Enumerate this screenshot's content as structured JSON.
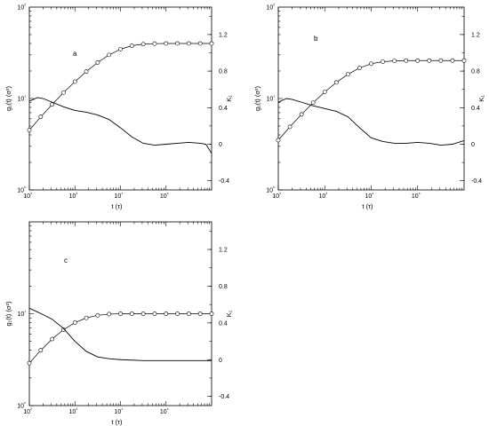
{
  "chart_data": [
    {
      "type": "line",
      "panel_label": "a",
      "xlabel": "t (τ)",
      "ylabel_left": "g₁(t) (σ²)",
      "ylabel_right": "K₁",
      "x_scale": "log",
      "y_left_scale": "log",
      "xlim": [
        100,
        1000000
      ],
      "y_left_lim": [
        1,
        100
      ],
      "y_right_lim": [
        -0.5,
        1.5
      ],
      "x_ticks": [
        "10²",
        "10³",
        "10⁴",
        "10⁵"
      ],
      "y_left_ticks": [
        "10⁰",
        "10¹",
        "10²"
      ],
      "y_right_ticks": [
        "-0.4",
        "0",
        "0.4",
        "0.8",
        "1.2"
      ],
      "series": [
        {
          "style": "circles_with_line",
          "x": [
            100,
            178,
            316,
            562,
            1000,
            1778,
            3162,
            5623,
            10000,
            17783,
            31623,
            56234,
            100000,
            177828,
            316228,
            562341,
            1000000
          ],
          "y": [
            4.5,
            6.3,
            8.6,
            11.6,
            15.3,
            19.7,
            24.8,
            30.0,
            34.6,
            37.8,
            39.3,
            39.8,
            40.0,
            40.0,
            40.0,
            40.0,
            40.0
          ]
        },
        {
          "style": "line",
          "x": [
            100,
            150,
            200,
            316,
            562,
            1000,
            1778,
            3162,
            5623,
            10000,
            17783,
            31623,
            56234,
            100000,
            177828,
            316228,
            562341,
            750000,
            1000000
          ],
          "y": [
            0.47,
            0.51,
            0.5,
            0.46,
            0.41,
            0.37,
            0.35,
            0.32,
            0.27,
            0.18,
            0.08,
            0.01,
            -0.01,
            0.0,
            0.01,
            0.02,
            0.01,
            0.0,
            -0.1
          ]
        }
      ]
    },
    {
      "type": "line",
      "panel_label": "b",
      "xlabel": "t (τ)",
      "ylabel_left": "g₁(t) (σ²)",
      "ylabel_right": "K₁",
      "x_scale": "log",
      "y_left_scale": "log",
      "xlim": [
        100,
        1000000
      ],
      "y_left_lim": [
        1,
        100
      ],
      "y_right_lim": [
        -0.5,
        1.5
      ],
      "x_ticks": [
        "10²",
        "10³",
        "10⁴",
        "10⁵"
      ],
      "y_left_ticks": [
        "10⁰",
        "10¹",
        "10²"
      ],
      "y_right_ticks": [
        "-0.4",
        "0",
        "0.4",
        "0.8",
        "1.2"
      ],
      "series": [
        {
          "style": "circles_with_line",
          "x": [
            100,
            178,
            316,
            562,
            1000,
            1778,
            3162,
            5623,
            10000,
            17783,
            31623,
            56234,
            100000,
            177828,
            316228,
            562341,
            1000000
          ],
          "y": [
            3.5,
            4.9,
            6.7,
            9.0,
            11.8,
            15.0,
            18.4,
            21.6,
            24.0,
            25.3,
            25.8,
            26.0,
            26.0,
            26.0,
            26.0,
            26.0,
            26.0
          ]
        },
        {
          "style": "line",
          "x": [
            100,
            150,
            200,
            316,
            562,
            1000,
            1778,
            3162,
            5623,
            10000,
            17783,
            31623,
            56234,
            100000,
            177828,
            316228,
            562341,
            1000000
          ],
          "y": [
            0.46,
            0.5,
            0.49,
            0.46,
            0.42,
            0.39,
            0.36,
            0.3,
            0.18,
            0.07,
            0.03,
            0.01,
            0.01,
            0.02,
            0.01,
            -0.01,
            0.0,
            0.04
          ]
        }
      ]
    },
    {
      "type": "line",
      "panel_label": "c",
      "xlabel": "t (τ)",
      "ylabel_left": "g₁(t) (σ²)",
      "ylabel_right": "K₁",
      "x_scale": "log",
      "y_left_scale": "log",
      "xlim": [
        100,
        1000000
      ],
      "y_left_lim": [
        1,
        100
      ],
      "y_right_lim": [
        -0.5,
        1.5
      ],
      "x_ticks": [
        "10²",
        "10³",
        "10⁴",
        "10⁵"
      ],
      "y_left_ticks": [
        "10⁰",
        "10¹"
      ],
      "y_right_ticks": [
        "-0.4",
        "0",
        "0.4",
        "0.8",
        "1.2"
      ],
      "series": [
        {
          "style": "circles_with_line",
          "x": [
            100,
            178,
            316,
            562,
            1000,
            1778,
            3162,
            5623,
            10000,
            17783,
            31623,
            56234,
            100000,
            177828,
            316228,
            562341,
            1000000
          ],
          "y": [
            2.9,
            4.0,
            5.3,
            6.7,
            8.0,
            9.0,
            9.6,
            9.9,
            10.0,
            10.0,
            10.0,
            10.0,
            10.0,
            10.0,
            10.0,
            10.0,
            10.0
          ]
        },
        {
          "style": "line",
          "x": [
            100,
            150,
            200,
            316,
            562,
            1000,
            1778,
            3162,
            5623,
            10000,
            31623,
            100000,
            316228,
            1000000
          ],
          "y": [
            0.56,
            0.52,
            0.49,
            0.44,
            0.34,
            0.2,
            0.09,
            0.03,
            0.01,
            0.0,
            -0.01,
            -0.01,
            -0.01,
            -0.01
          ]
        }
      ]
    }
  ]
}
